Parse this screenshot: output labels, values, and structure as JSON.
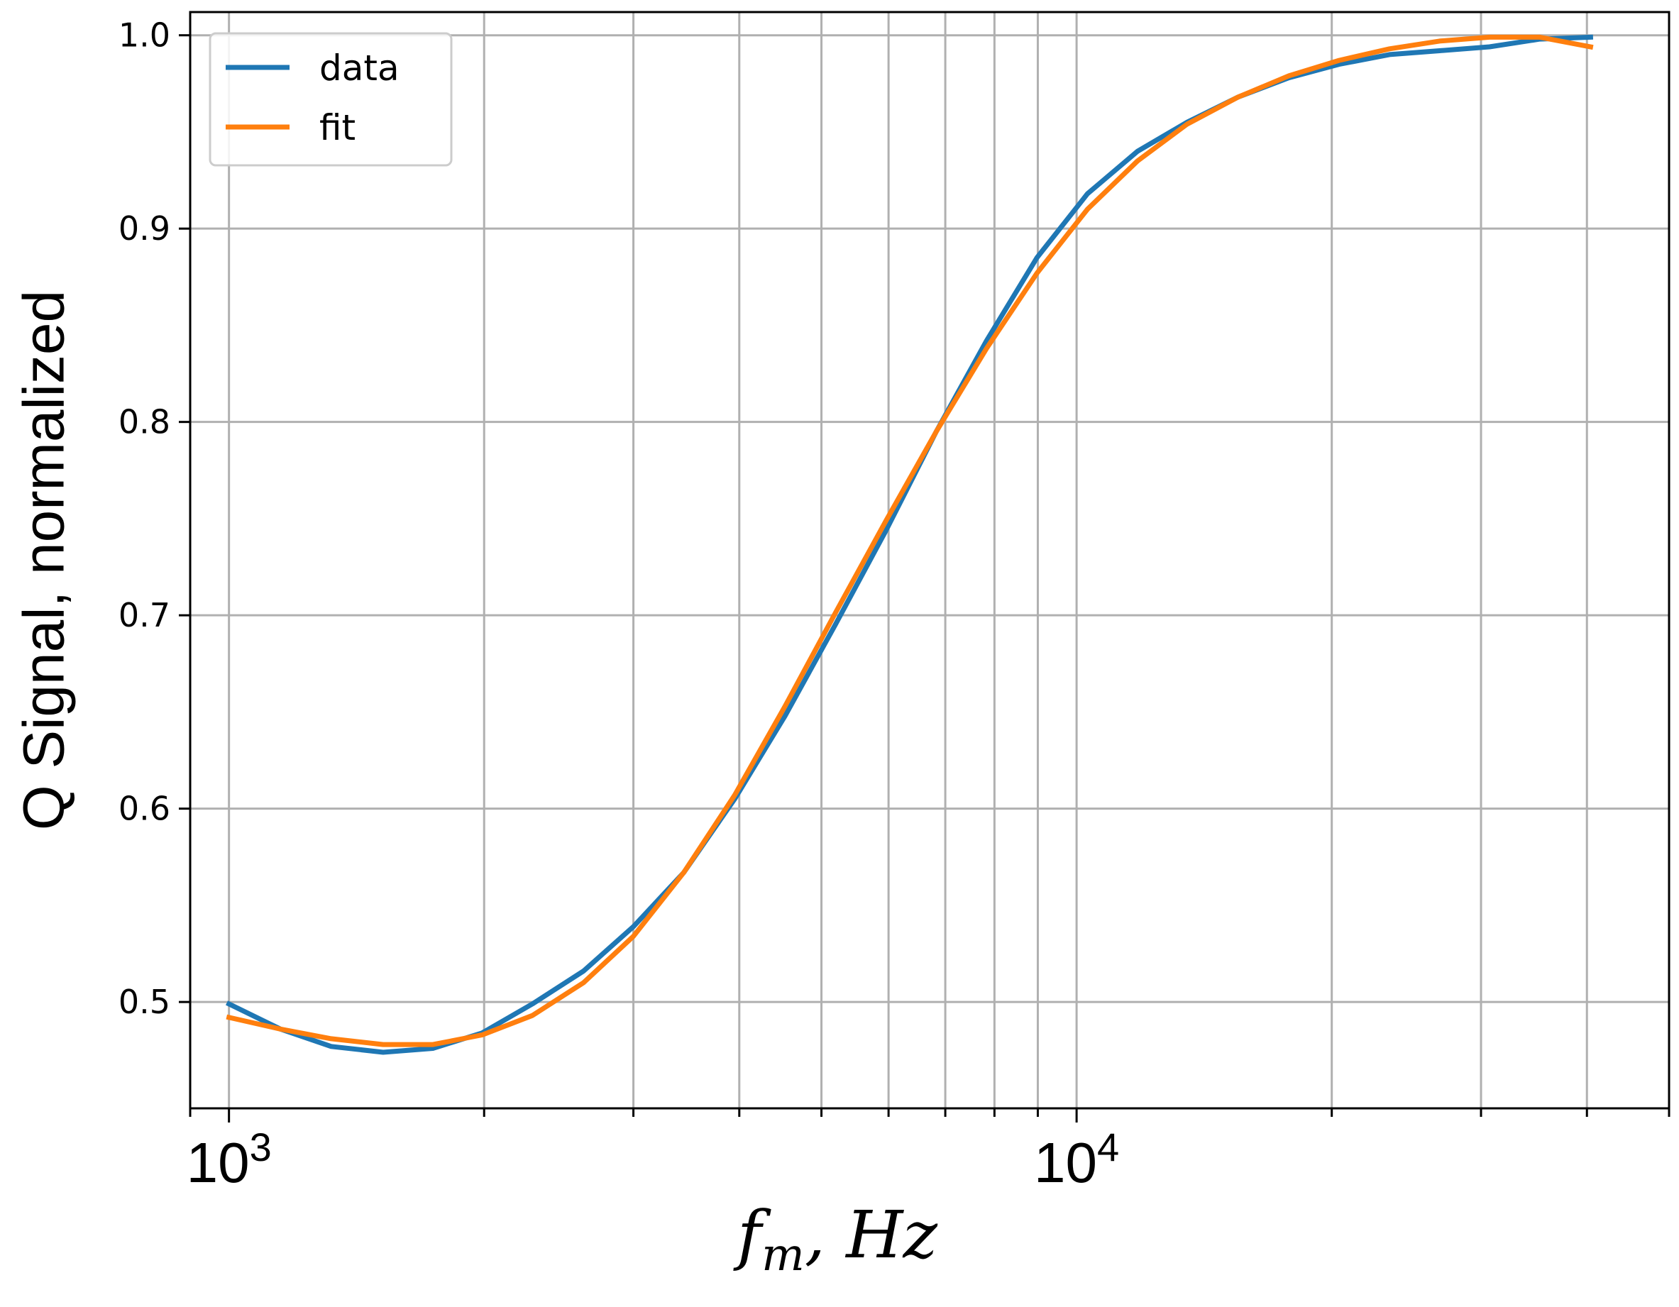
{
  "chart_data": {
    "type": "line",
    "title": "",
    "xlabel": "f_m, Hz",
    "xlabel_parts": {
      "main": "f",
      "sub": "m",
      "rest": ", Hz"
    },
    "ylabel": "Q Signal, normalized",
    "xscale": "log",
    "xlim": [
      900,
      50000
    ],
    "ylim": [
      0.445,
      1.012
    ],
    "grid": true,
    "legend_position": "top-left",
    "x_major_ticks": [
      {
        "value": 1000,
        "base": "10",
        "exp": "3"
      },
      {
        "value": 10000,
        "base": "10",
        "exp": "4"
      }
    ],
    "y_ticks": [
      {
        "value": 0.5,
        "label": "0.5"
      },
      {
        "value": 0.6,
        "label": "0.6"
      },
      {
        "value": 0.7,
        "label": "0.7"
      },
      {
        "value": 0.8,
        "label": "0.8"
      },
      {
        "value": 0.9,
        "label": "0.9"
      },
      {
        "value": 1.0,
        "label": "1.0"
      }
    ],
    "series": [
      {
        "name": "data",
        "color": "#1f77b4",
        "x": [
          1000,
          1150,
          1320,
          1520,
          1740,
          1990,
          2280,
          2620,
          3000,
          3440,
          3950,
          4530,
          5190,
          5960,
          6830,
          7830,
          8980,
          10300,
          11800,
          13500,
          15500,
          17800,
          20400,
          23400,
          26800,
          30700,
          35200,
          40400
        ],
        "values": [
          0.499,
          0.486,
          0.477,
          0.474,
          0.476,
          0.484,
          0.499,
          0.516,
          0.539,
          0.567,
          0.605,
          0.648,
          0.695,
          0.744,
          0.795,
          0.842,
          0.885,
          0.918,
          0.94,
          0.955,
          0.968,
          0.978,
          0.985,
          0.99,
          0.992,
          0.994,
          0.998,
          0.999
        ]
      },
      {
        "name": "fit",
        "color": "#ff7f0e",
        "x": [
          1000,
          1150,
          1320,
          1520,
          1740,
          1990,
          2280,
          2620,
          3000,
          3440,
          3950,
          4530,
          5190,
          5960,
          6830,
          7830,
          8980,
          10300,
          11800,
          13500,
          15500,
          17800,
          20400,
          23400,
          26800,
          30700,
          35200,
          40400
        ],
        "values": [
          0.492,
          0.486,
          0.481,
          0.478,
          0.478,
          0.483,
          0.493,
          0.51,
          0.534,
          0.567,
          0.607,
          0.653,
          0.701,
          0.749,
          0.795,
          0.838,
          0.877,
          0.91,
          0.935,
          0.954,
          0.968,
          0.979,
          0.987,
          0.993,
          0.997,
          0.999,
          0.999,
          0.994
        ]
      }
    ]
  }
}
